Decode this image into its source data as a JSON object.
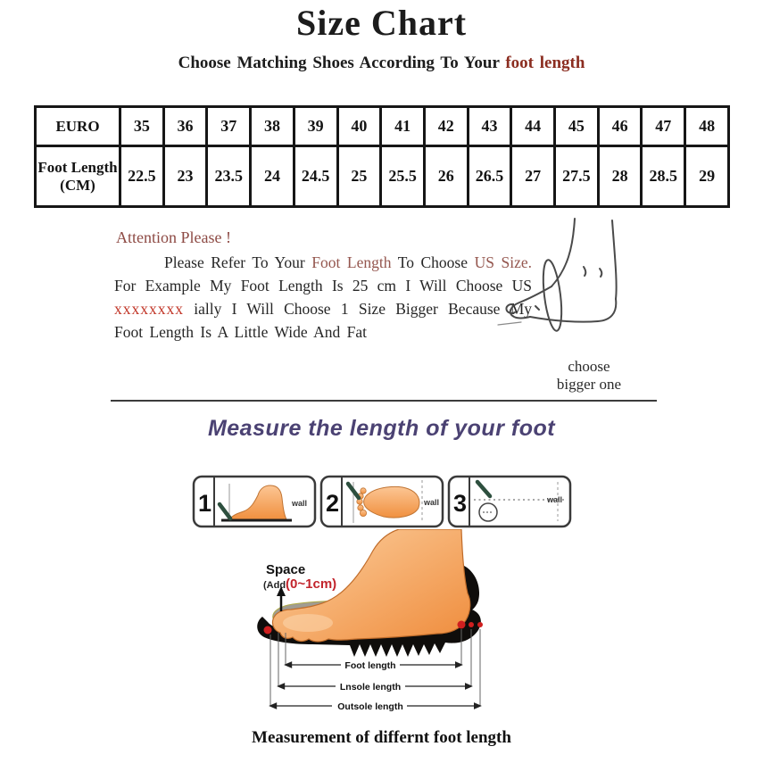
{
  "title": "Size Chart",
  "subtitle": {
    "prefix": "Choose Matching Shoes According To Your ",
    "highlight": "foot length"
  },
  "size_table": {
    "row1_label": "EURO",
    "row2_label": "Foot Length (CM)",
    "euro": [
      "35",
      "36",
      "37",
      "38",
      "39",
      "40",
      "41",
      "42",
      "43",
      "44",
      "45",
      "46",
      "47",
      "48"
    ],
    "foot_cm": [
      "22.5",
      "23",
      "23.5",
      "24",
      "24.5",
      "25",
      "25.5",
      "26",
      "26.5",
      "27",
      "27.5",
      "28",
      "28.5",
      "29"
    ]
  },
  "attention": {
    "heading": "Attention Please !",
    "segments": [
      {
        "t": "Please Refer To Your ",
        "c": "dark"
      },
      {
        "t": "Foot Length",
        "c": "maroon"
      },
      {
        "t": " To Choose ",
        "c": "dark"
      },
      {
        "t": "US Size.",
        "c": "maroon"
      },
      {
        "t": " For Example My Foot Length Is 25 cm I Will Choose US ",
        "c": "dark"
      },
      {
        "t": "xxxxxxxx",
        "c": "bright"
      },
      {
        "t": " ially I Will Choose 1 Size Bigger Because My Foot Length Is A Little Wide And Fat",
        "c": "dark"
      }
    ],
    "sketch_caption_line1": "choose",
    "sketch_caption_line2": "bigger one"
  },
  "measure": {
    "heading": "Measure the length of your foot",
    "steps": [
      "1",
      "2",
      "3"
    ],
    "wall_label": "wall"
  },
  "illustration": {
    "space_line1": "Space",
    "space_line2a": "(Add",
    "space_line2b": "(0~1cm)",
    "arrow_labels": [
      "Foot length",
      "Lnsole length",
      "Outsole length"
    ]
  },
  "bottom_caption": "Measurement of differnt foot length",
  "colors": {
    "highlight_red": "#8b2d20",
    "attention_maroon": "#8d4a44",
    "bright_red": "#c13527",
    "purple_heading": "#4b4273",
    "foot_orange": "#f5994f",
    "pen_green": "#2d4f3e",
    "dot_red": "#cf1f1f"
  }
}
